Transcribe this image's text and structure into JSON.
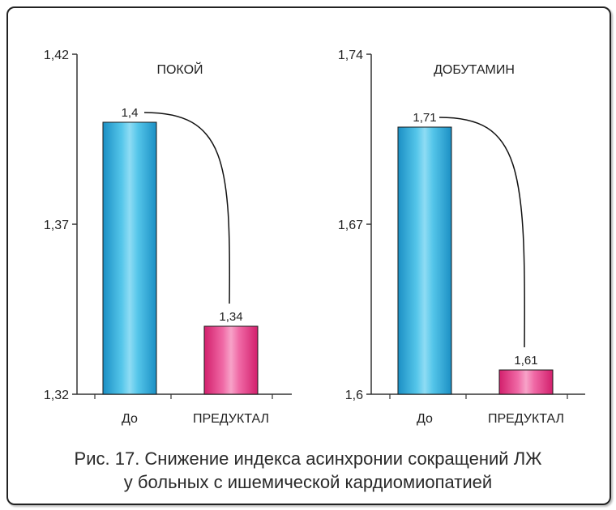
{
  "caption": {
    "line1": "Рис. 17. Снижение индекса асинхронии сокращений ЛЖ",
    "line2": "у больных с ишемической кардиомиопатией"
  },
  "colors": {
    "before": "#2aa7d6",
    "after": "#e8307f"
  },
  "chart_data": [
    {
      "type": "bar",
      "title": "ПОКОЙ",
      "categories": [
        "До",
        "ПРЕДУКТАЛ"
      ],
      "values": [
        1.4,
        1.34
      ],
      "value_labels": [
        "1,4",
        "1,34"
      ],
      "ylim": [
        1.32,
        1.42
      ],
      "yticks": [
        1.32,
        1.37,
        1.42
      ],
      "ytick_labels": [
        "1,32",
        "1,37",
        "1,42"
      ]
    },
    {
      "type": "bar",
      "title": "ДОБУТАМИН",
      "categories": [
        "До",
        "ПРЕДУКТАЛ"
      ],
      "values": [
        1.71,
        1.61
      ],
      "value_labels": [
        "1,71",
        "1,61"
      ],
      "ylim": [
        1.6,
        1.74
      ],
      "yticks": [
        1.6,
        1.67,
        1.74
      ],
      "ytick_labels": [
        "1,6",
        "1,67",
        "1,74"
      ]
    }
  ]
}
